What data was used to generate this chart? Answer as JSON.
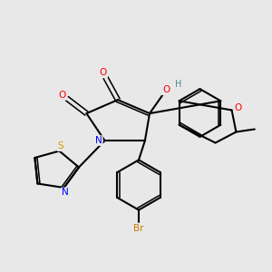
{
  "background_color": "#e8e8e8",
  "atom_colors": {
    "O": "#ff0000",
    "N": "#0000ff",
    "S": "#c8a000",
    "Br": "#c87800",
    "C": "#000000",
    "H": "#4a8a8a"
  },
  "bond_color": "#000000",
  "bond_width": 1.5,
  "font_size": 7.0
}
